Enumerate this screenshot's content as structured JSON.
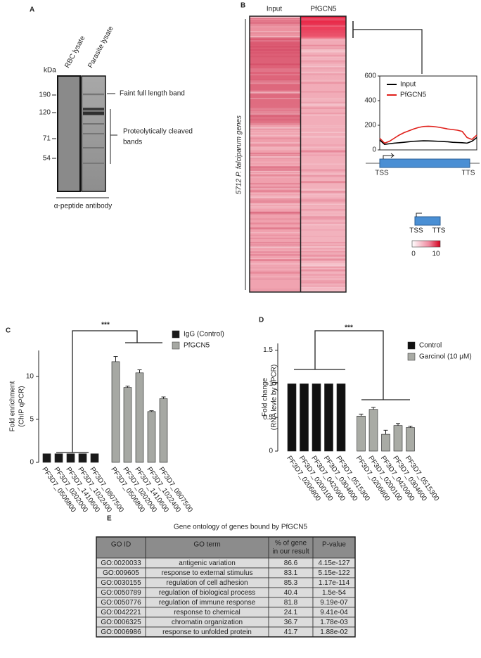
{
  "panel_labels": [
    "A",
    "B",
    "C",
    "D",
    "E"
  ],
  "blot": {
    "unit": "kDa",
    "lanes": [
      "RBC lysate",
      "Parasite lysate"
    ],
    "markers": [
      190,
      120,
      71,
      54
    ],
    "full_length_note": "Faint full length band",
    "cleaved_note": [
      "Proteolytically cleaved",
      "bands"
    ],
    "antibody": "α-peptide antibody"
  },
  "heatmap": {
    "columns": [
      "Input",
      "PfGCN5"
    ],
    "row_label": "5712 P. falciparum genes",
    "diagram_labels": [
      "TSS",
      "TTS"
    ],
    "colorbar_ticks": [
      0,
      10
    ]
  },
  "chart_data": [
    {
      "type": "line",
      "x": [
        0,
        1,
        2,
        3,
        4,
        5,
        6,
        7,
        8,
        9,
        10,
        11,
        12,
        13,
        14,
        15,
        16,
        17,
        18,
        19,
        20
      ],
      "xlim": [
        0,
        20
      ],
      "ylim": [
        0,
        600
      ],
      "yticks": [
        0,
        200,
        400,
        600
      ],
      "legend": "upper left",
      "annotations": [
        "TSS",
        "TTS"
      ],
      "series": [
        {
          "name": "Input",
          "color": "#000000",
          "values": [
            80,
            45,
            50,
            55,
            58,
            62,
            66,
            70,
            72,
            74,
            73,
            72,
            70,
            68,
            66,
            62,
            60,
            58,
            55,
            70,
            100
          ]
        },
        {
          "name": "PfGCN5",
          "color": "#e0201b",
          "values": [
            95,
            55,
            70,
            95,
            120,
            140,
            155,
            170,
            182,
            190,
            192,
            190,
            185,
            178,
            170,
            165,
            160,
            150,
            100,
            85,
            120
          ]
        }
      ]
    },
    {
      "type": "bar",
      "ylabel": [
        "Fold enrichment",
        "(ChIP qPCR)"
      ],
      "ylim": [
        0,
        13
      ],
      "yticks": [
        0,
        5,
        10
      ],
      "categories": [
        "PF3D7_0506800",
        "PF3D7_0202000",
        "PF3D7_1410600",
        "PF3D7_1022400",
        "PF3D7_0807500"
      ],
      "annotation": "***",
      "series": [
        {
          "name": "IgG (Control)",
          "color": "#1a1a1a",
          "values": [
            1,
            1,
            1,
            1,
            1
          ]
        },
        {
          "name": "PfGCN5",
          "color": "#a6a8a3",
          "values": [
            11.7,
            8.7,
            10.4,
            5.9,
            7.4
          ],
          "errors": [
            0.6,
            0.15,
            0.35,
            0.1,
            0.2
          ]
        }
      ]
    },
    {
      "type": "bar",
      "ylabel": [
        "Fold change",
        "(RNA levle by qPCR)"
      ],
      "ylim": [
        0,
        1.6
      ],
      "yticks": [
        0,
        0.5,
        1,
        1.5
      ],
      "categories": [
        "PF3D7_0206800",
        "PF3D7_0200100",
        "PF3D7_0420900",
        "PF3D7_0304600",
        "PF3D7_0515300"
      ],
      "annotation": "***",
      "series": [
        {
          "name": "Control",
          "color": "#111111",
          "values": [
            1,
            1,
            1,
            1,
            1
          ]
        },
        {
          "name": "Garcinol (10 μM)",
          "color": "#a9aba5",
          "values": [
            0.52,
            0.62,
            0.25,
            0.38,
            0.35
          ],
          "errors": [
            0.03,
            0.03,
            0.06,
            0.03,
            0.02
          ]
        }
      ]
    }
  ],
  "table": {
    "title": "Gene ontology of genes bound by PfGCN5",
    "header": [
      "GO ID",
      "GO term",
      [
        "% of gene",
        "in our result"
      ],
      "P-value"
    ],
    "rows": [
      [
        "GO:0020033",
        "antigenic variation",
        86.6,
        "4.15e-127"
      ],
      [
        "GO:009605",
        "response to external stimulus",
        83.1,
        "5.15e-122"
      ],
      [
        "GO:0030155",
        "regulation of cell adhesion",
        85.3,
        "1.17e-114"
      ],
      [
        "GO:0050789",
        "regulation of biological process",
        40.4,
        "1.5e-54"
      ],
      [
        "GO:0050776",
        "regulation of immune response",
        81.8,
        "9.19e-07"
      ],
      [
        "GO:0042221",
        "response to chemical",
        24.1,
        "9.41e-04"
      ],
      [
        "GO:0006325",
        "chromatin organization",
        36.7,
        "1.78e-03"
      ],
      [
        "GO:0006986",
        "response to unfolded protein",
        41.7,
        "1.88e-02"
      ]
    ]
  }
}
